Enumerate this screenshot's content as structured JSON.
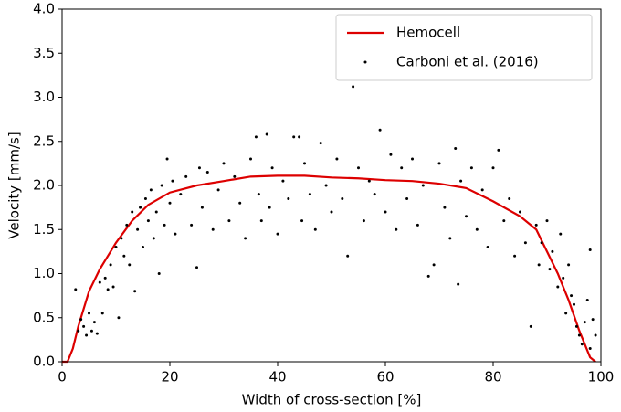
{
  "chart_data": {
    "type": "line",
    "xlabel": "Width of cross-section [%]",
    "ylabel": "Velocity [mm/s]",
    "xlim": [
      0,
      100
    ],
    "xticks": [
      0,
      20,
      40,
      60,
      80,
      100
    ],
    "ylim": [
      0,
      4
    ],
    "yticks": [
      {
        "value": 0,
        "label": "0.0"
      },
      {
        "value": 0.5,
        "label": "0.5"
      },
      {
        "value": 1,
        "label": "1.0"
      },
      {
        "value": 1.5,
        "label": "1.5"
      },
      {
        "value": 2,
        "label": "2.0"
      },
      {
        "value": 2.5,
        "label": "2.5"
      },
      {
        "value": 3,
        "label": "3.0"
      },
      {
        "value": 3.5,
        "label": "3.5"
      },
      {
        "value": 4,
        "label": "4.0"
      }
    ],
    "legend": "upper right",
    "series": [
      {
        "name": "Hemocell",
        "type": "line",
        "color": "#dd0000",
        "x": [
          0,
          1,
          2,
          3,
          5,
          7,
          10,
          13,
          16,
          20,
          25,
          30,
          35,
          40,
          45,
          50,
          55,
          60,
          65,
          70,
          75,
          80,
          85,
          88,
          90,
          92,
          94,
          96,
          98,
          99
        ],
        "values": [
          0,
          0,
          0.15,
          0.4,
          0.8,
          1.05,
          1.35,
          1.6,
          1.78,
          1.92,
          2.0,
          2.05,
          2.1,
          2.11,
          2.11,
          2.09,
          2.08,
          2.06,
          2.05,
          2.02,
          1.97,
          1.82,
          1.65,
          1.5,
          1.25,
          1.0,
          0.7,
          0.35,
          0.05,
          0
        ]
      },
      {
        "name": "Carboni et al. (2016)",
        "type": "scatter",
        "color": "#000000",
        "x": [
          2.5,
          3,
          3.5,
          4,
          4.5,
          5,
          5.5,
          6,
          6.5,
          7,
          7.5,
          8,
          8.5,
          9,
          9.5,
          10,
          10.5,
          11,
          11.5,
          12,
          12.5,
          13,
          13.5,
          14,
          14.5,
          15,
          15.5,
          16,
          16.5,
          17,
          17.5,
          18,
          18.5,
          19,
          19.5,
          20,
          20.5,
          21,
          22,
          23,
          24,
          25,
          25.5,
          26,
          27,
          28,
          29,
          30,
          31,
          32,
          33,
          34,
          35,
          36,
          36.5,
          37,
          38,
          38.5,
          39,
          40,
          41,
          42,
          43,
          44,
          44.5,
          45,
          46,
          47,
          48,
          49,
          50,
          51,
          52,
          53,
          54,
          55,
          56,
          57,
          58,
          59,
          60,
          61,
          62,
          63,
          64,
          65,
          66,
          67,
          68,
          69,
          70,
          71,
          72,
          73,
          73.5,
          74,
          75,
          76,
          77,
          78,
          79,
          80,
          81,
          82,
          83,
          84,
          85,
          86,
          87,
          88,
          88.5,
          89,
          90,
          90.5,
          91,
          92,
          92.5,
          93,
          93.5,
          94,
          94.5,
          95,
          95.5,
          96,
          96.5,
          97,
          97.5,
          98,
          98,
          98.5,
          99
        ],
        "values": [
          0.82,
          0.35,
          0.48,
          0.4,
          0.3,
          0.55,
          0.35,
          0.45,
          0.32,
          0.9,
          0.55,
          0.95,
          0.82,
          1.1,
          0.85,
          1.3,
          0.5,
          1.4,
          1.2,
          1.55,
          1.1,
          1.7,
          0.8,
          1.5,
          1.75,
          1.3,
          1.85,
          1.6,
          1.95,
          1.4,
          1.7,
          1.0,
          2.0,
          1.55,
          2.3,
          1.8,
          2.05,
          1.45,
          1.9,
          2.1,
          1.55,
          1.07,
          2.2,
          1.75,
          2.15,
          1.5,
          1.95,
          2.25,
          1.6,
          2.1,
          1.8,
          1.4,
          2.3,
          2.55,
          1.9,
          1.6,
          2.58,
          1.75,
          2.2,
          1.45,
          2.05,
          1.85,
          2.55,
          2.55,
          1.6,
          2.25,
          1.9,
          1.5,
          2.48,
          2.0,
          1.7,
          2.3,
          1.85,
          1.2,
          3.12,
          2.2,
          1.6,
          2.05,
          1.9,
          2.63,
          1.7,
          2.35,
          1.5,
          2.2,
          1.85,
          2.3,
          1.55,
          2.0,
          0.97,
          1.1,
          2.25,
          1.75,
          1.4,
          2.42,
          0.88,
          2.05,
          1.65,
          2.2,
          1.5,
          1.95,
          1.3,
          2.2,
          2.4,
          1.6,
          1.85,
          1.2,
          1.7,
          1.35,
          0.4,
          1.55,
          1.1,
          1.35,
          1.6,
          1.05,
          1.25,
          0.85,
          1.45,
          0.95,
          0.55,
          1.1,
          0.75,
          0.65,
          0.4,
          0.3,
          0.2,
          0.45,
          0.7,
          1.27,
          0.15,
          0.48,
          0.3
        ]
      }
    ]
  }
}
